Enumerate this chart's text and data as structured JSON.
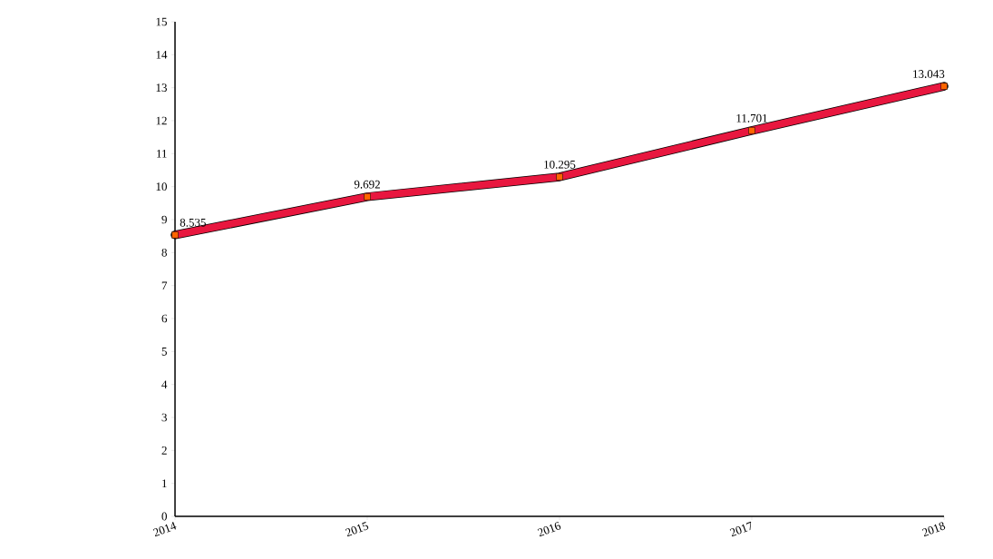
{
  "chart_data": {
    "type": "line",
    "categories": [
      "2014",
      "2015",
      "2016",
      "2017",
      "2018"
    ],
    "series": [
      {
        "color": "#e8173f",
        "values": [
          8.535,
          9.692,
          10.295,
          11.701,
          13.043
        ]
      }
    ],
    "ylim": [
      0,
      15
    ],
    "yticks": [
      0,
      1,
      2,
      3,
      4,
      5,
      6,
      7,
      8,
      9,
      10,
      11,
      12,
      13,
      14,
      15
    ],
    "marker": "square",
    "data_labels": true
  }
}
